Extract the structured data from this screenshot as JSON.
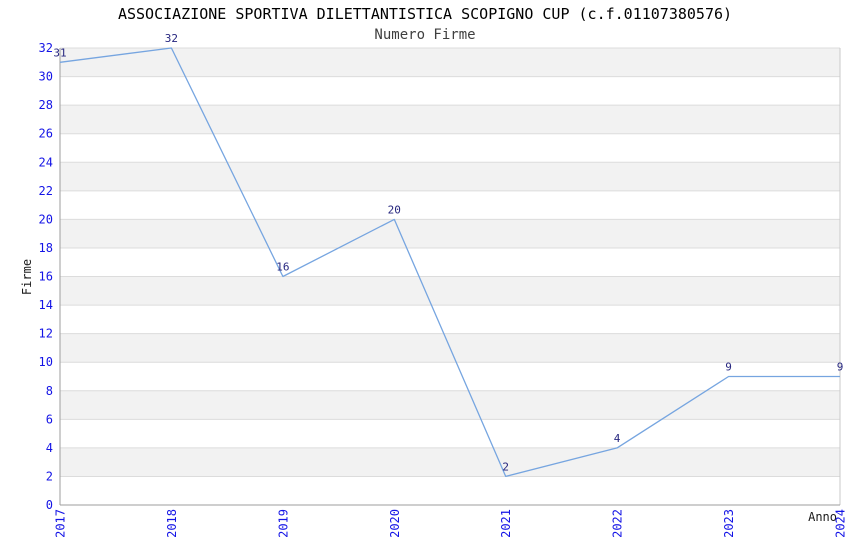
{
  "page": {
    "background": "#ffffff"
  },
  "chart_data": {
    "type": "line",
    "title": "ASSOCIAZIONE SPORTIVA DILETTANTISTICA SCOPIGNO CUP (c.f.01107380576)",
    "subtitle": "Numero Firme",
    "xlabel": "Anno",
    "ylabel": "Firme",
    "categories": [
      "2017",
      "2018",
      "2019",
      "2020",
      "2021",
      "2022",
      "2023",
      "2024"
    ],
    "series": [
      {
        "name": "Numero Firme",
        "values": [
          31,
          32,
          16,
          20,
          2,
          4,
          9,
          9
        ]
      }
    ],
    "ylim": [
      0,
      32
    ],
    "ytick_step": 2,
    "grid": true,
    "legend": "none",
    "band_shading": "alternating",
    "point_labels": [
      "31",
      "32",
      "16",
      "20",
      "2",
      "4",
      "9",
      "9"
    ],
    "colors": {
      "line": "#76a5e0",
      "tick_label": "#1414e6",
      "data_label": "#26267f",
      "band": "#f2f2f2",
      "gridline": "#dcdcdc",
      "axis": "#9e9e9e",
      "border": "#c9c9c9",
      "title": "#000000",
      "subtitle": "#3f3f3f",
      "axis_title": "#1a1a1a"
    }
  }
}
